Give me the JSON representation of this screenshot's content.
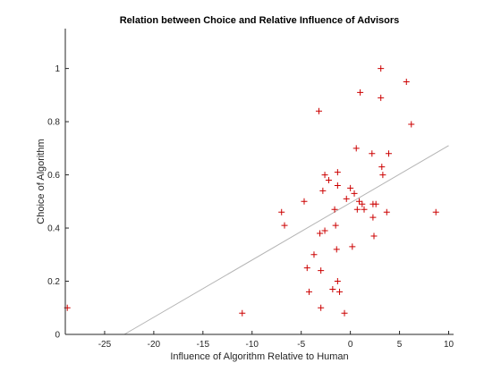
{
  "chart_data": {
    "type": "scatter",
    "title": "Relation between Choice and Relative Influence of Advisors",
    "xlabel": "Influence of Algorithm Relative to Human",
    "ylabel": "Choice of Algorithm",
    "xlim": [
      -29,
      10.5
    ],
    "ylim": [
      0,
      1.15
    ],
    "xticks": [
      -25,
      -20,
      -15,
      -10,
      -5,
      0,
      5,
      10
    ],
    "yticks": [
      0,
      0.2,
      0.4,
      0.6,
      0.8,
      1
    ],
    "xtick_labels": [
      "-25",
      "-20",
      "-15",
      "-10",
      "-5",
      "0",
      "5",
      "10"
    ],
    "ytick_labels": [
      "0",
      "0.2",
      "0.4",
      "0.6",
      "0.8",
      "1"
    ],
    "grid": false,
    "marker": "+",
    "marker_color": "#cc0000",
    "line_color": "#b4b4b4",
    "axis_color": "#262626",
    "points": [
      {
        "x": -28.8,
        "y": 0.1
      },
      {
        "x": -11.0,
        "y": 0.08
      },
      {
        "x": -7.0,
        "y": 0.46
      },
      {
        "x": -6.7,
        "y": 0.41
      },
      {
        "x": -4.7,
        "y": 0.5
      },
      {
        "x": -4.4,
        "y": 0.25
      },
      {
        "x": -4.2,
        "y": 0.16
      },
      {
        "x": -3.7,
        "y": 0.3
      },
      {
        "x": -3.2,
        "y": 0.84
      },
      {
        "x": -3.1,
        "y": 0.38
      },
      {
        "x": -3.0,
        "y": 0.24
      },
      {
        "x": -3.0,
        "y": 0.1
      },
      {
        "x": -2.8,
        "y": 0.54
      },
      {
        "x": -2.6,
        "y": 0.6
      },
      {
        "x": -2.6,
        "y": 0.39
      },
      {
        "x": -2.2,
        "y": 0.58
      },
      {
        "x": -1.8,
        "y": 0.17
      },
      {
        "x": -1.6,
        "y": 0.47
      },
      {
        "x": -1.5,
        "y": 0.41
      },
      {
        "x": -1.4,
        "y": 0.32
      },
      {
        "x": -1.3,
        "y": 0.61
      },
      {
        "x": -1.3,
        "y": 0.56
      },
      {
        "x": -1.3,
        "y": 0.2
      },
      {
        "x": -1.1,
        "y": 0.16
      },
      {
        "x": -0.6,
        "y": 0.08
      },
      {
        "x": -0.4,
        "y": 0.51
      },
      {
        "x": 0.0,
        "y": 0.55
      },
      {
        "x": 0.2,
        "y": 0.33
      },
      {
        "x": 0.4,
        "y": 0.53
      },
      {
        "x": 0.6,
        "y": 0.7
      },
      {
        "x": 0.7,
        "y": 0.47
      },
      {
        "x": 0.9,
        "y": 0.5
      },
      {
        "x": 1.0,
        "y": 0.91
      },
      {
        "x": 1.2,
        "y": 0.49
      },
      {
        "x": 1.4,
        "y": 0.47
      },
      {
        "x": 2.2,
        "y": 0.68
      },
      {
        "x": 2.3,
        "y": 0.49
      },
      {
        "x": 2.3,
        "y": 0.44
      },
      {
        "x": 2.4,
        "y": 0.37
      },
      {
        "x": 2.6,
        "y": 0.49
      },
      {
        "x": 3.1,
        "y": 1.0
      },
      {
        "x": 3.1,
        "y": 0.89
      },
      {
        "x": 3.2,
        "y": 0.63
      },
      {
        "x": 3.3,
        "y": 0.6
      },
      {
        "x": 3.7,
        "y": 0.46
      },
      {
        "x": 3.9,
        "y": 0.68
      },
      {
        "x": 5.7,
        "y": 0.95
      },
      {
        "x": 6.2,
        "y": 0.79
      },
      {
        "x": 8.7,
        "y": 0.46
      }
    ],
    "fit_line": {
      "x": [
        -23.0,
        10.0
      ],
      "y": [
        0.0,
        0.71
      ]
    }
  }
}
